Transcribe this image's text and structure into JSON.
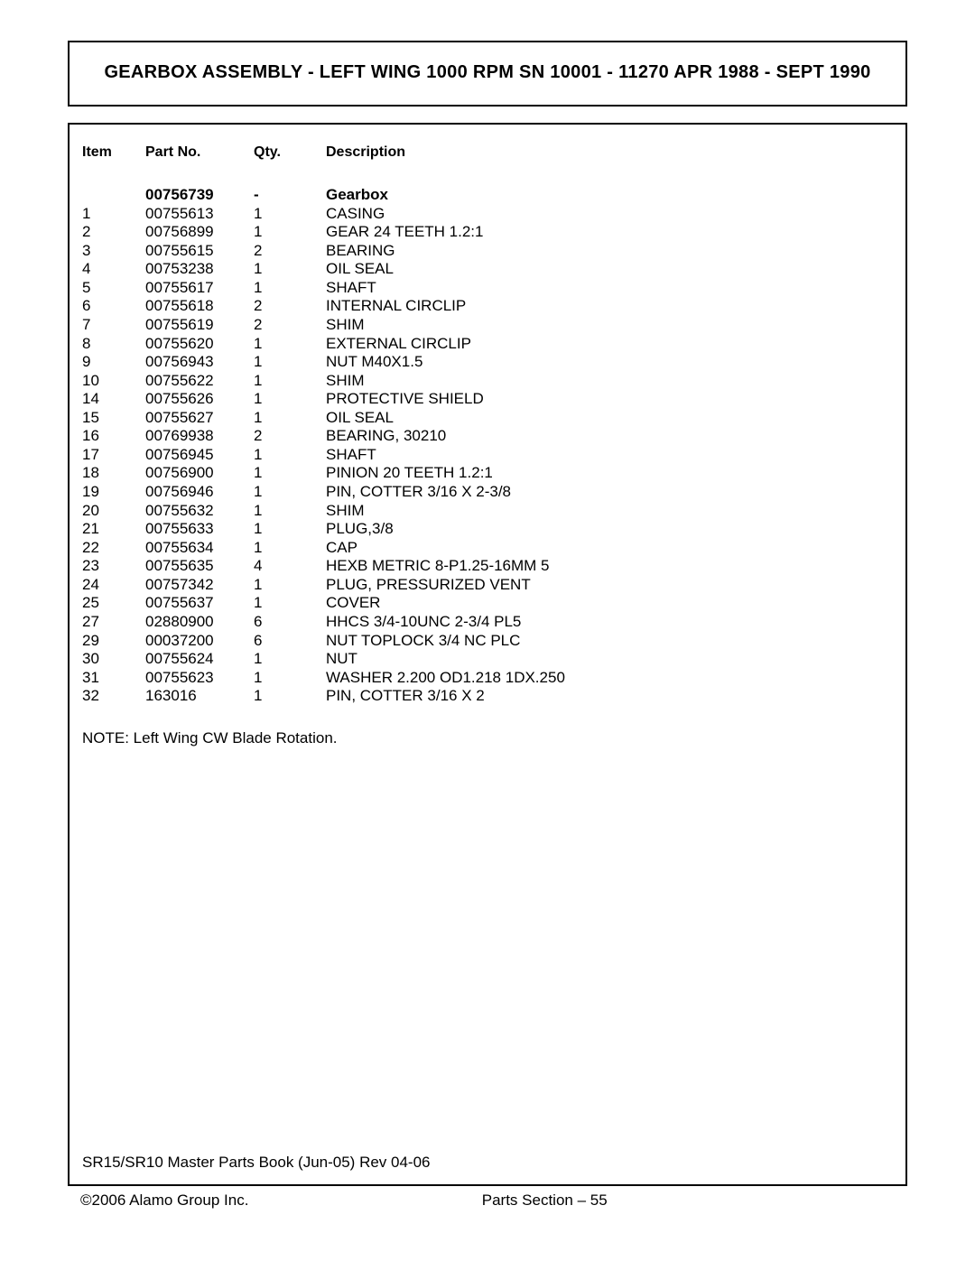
{
  "title": "GEARBOX ASSEMBLY - LEFT WING 1000 RPM SN 10001 - 11270 APR 1988 - SEPT 1990",
  "headers": {
    "item": "Item",
    "part": "Part No.",
    "qty": "Qty.",
    "desc": "Description"
  },
  "rows": [
    {
      "item": "",
      "part": "00756739",
      "qty": "-",
      "desc": "Gearbox",
      "bold": true
    },
    {
      "item": "1",
      "part": "00755613",
      "qty": "1",
      "desc": "CASING"
    },
    {
      "item": "2",
      "part": "00756899",
      "qty": "1",
      "desc": "GEAR 24 TEETH 1.2:1"
    },
    {
      "item": "3",
      "part": "00755615",
      "qty": "2",
      "desc": "BEARING"
    },
    {
      "item": "4",
      "part": "00753238",
      "qty": "1",
      "desc": "OIL SEAL"
    },
    {
      "item": "5",
      "part": "00755617",
      "qty": "1",
      "desc": "SHAFT"
    },
    {
      "item": "6",
      "part": "00755618",
      "qty": "2",
      "desc": "INTERNAL CIRCLIP"
    },
    {
      "item": "7",
      "part": "00755619",
      "qty": "2",
      "desc": "SHIM"
    },
    {
      "item": "8",
      "part": "00755620",
      "qty": "1",
      "desc": "EXTERNAL CIRCLIP"
    },
    {
      "item": "9",
      "part": "00756943",
      "qty": "1",
      "desc": "NUT M40X1.5"
    },
    {
      "item": "10",
      "part": "00755622",
      "qty": "1",
      "desc": "SHIM"
    },
    {
      "item": "14",
      "part": "00755626",
      "qty": "1",
      "desc": "PROTECTIVE SHIELD"
    },
    {
      "item": "15",
      "part": "00755627",
      "qty": "1",
      "desc": "OIL SEAL"
    },
    {
      "item": "16",
      "part": "00769938",
      "qty": "2",
      "desc": "BEARING, 30210"
    },
    {
      "item": "17",
      "part": "00756945",
      "qty": "1",
      "desc": "SHAFT"
    },
    {
      "item": "18",
      "part": "00756900",
      "qty": "1",
      "desc": "PINION 20 TEETH 1.2:1"
    },
    {
      "item": "19",
      "part": "00756946",
      "qty": "1",
      "desc": "PIN, COTTER 3/16 X 2-3/8"
    },
    {
      "item": "20",
      "part": "00755632",
      "qty": "1",
      "desc": "SHIM"
    },
    {
      "item": "21",
      "part": "00755633",
      "qty": "1",
      "desc": "PLUG,3/8"
    },
    {
      "item": "22",
      "part": "00755634",
      "qty": "1",
      "desc": "CAP"
    },
    {
      "item": "23",
      "part": "00755635",
      "qty": "4",
      "desc": "HEXB METRIC 8-P1.25-16MM 5"
    },
    {
      "item": "24",
      "part": "00757342",
      "qty": "1",
      "desc": "PLUG, PRESSURIZED VENT"
    },
    {
      "item": "25",
      "part": "00755637",
      "qty": "1",
      "desc": "COVER"
    },
    {
      "item": "27",
      "part": "02880900",
      "qty": "6",
      "desc": "HHCS 3/4-10UNC 2-3/4 PL5"
    },
    {
      "item": "29",
      "part": "00037200",
      "qty": "6",
      "desc": "NUT TOPLOCK 3/4 NC PLC"
    },
    {
      "item": "30",
      "part": "00755624",
      "qty": "1",
      "desc": "NUT"
    },
    {
      "item": "31",
      "part": "00755623",
      "qty": "1",
      "desc": "WASHER 2.200 OD1.218 1DX.250"
    },
    {
      "item": "32",
      "part": "163016",
      "qty": "1",
      "desc": "PIN, COTTER 3/16 X 2"
    }
  ],
  "note": "NOTE: Left Wing CW Blade Rotation.",
  "doc_ref": "SR15/SR10 Master Parts Book (Jun-05) Rev 04-06",
  "footer": {
    "copyright": "©2006 Alamo Group Inc.",
    "section": "Parts Section – 55"
  }
}
